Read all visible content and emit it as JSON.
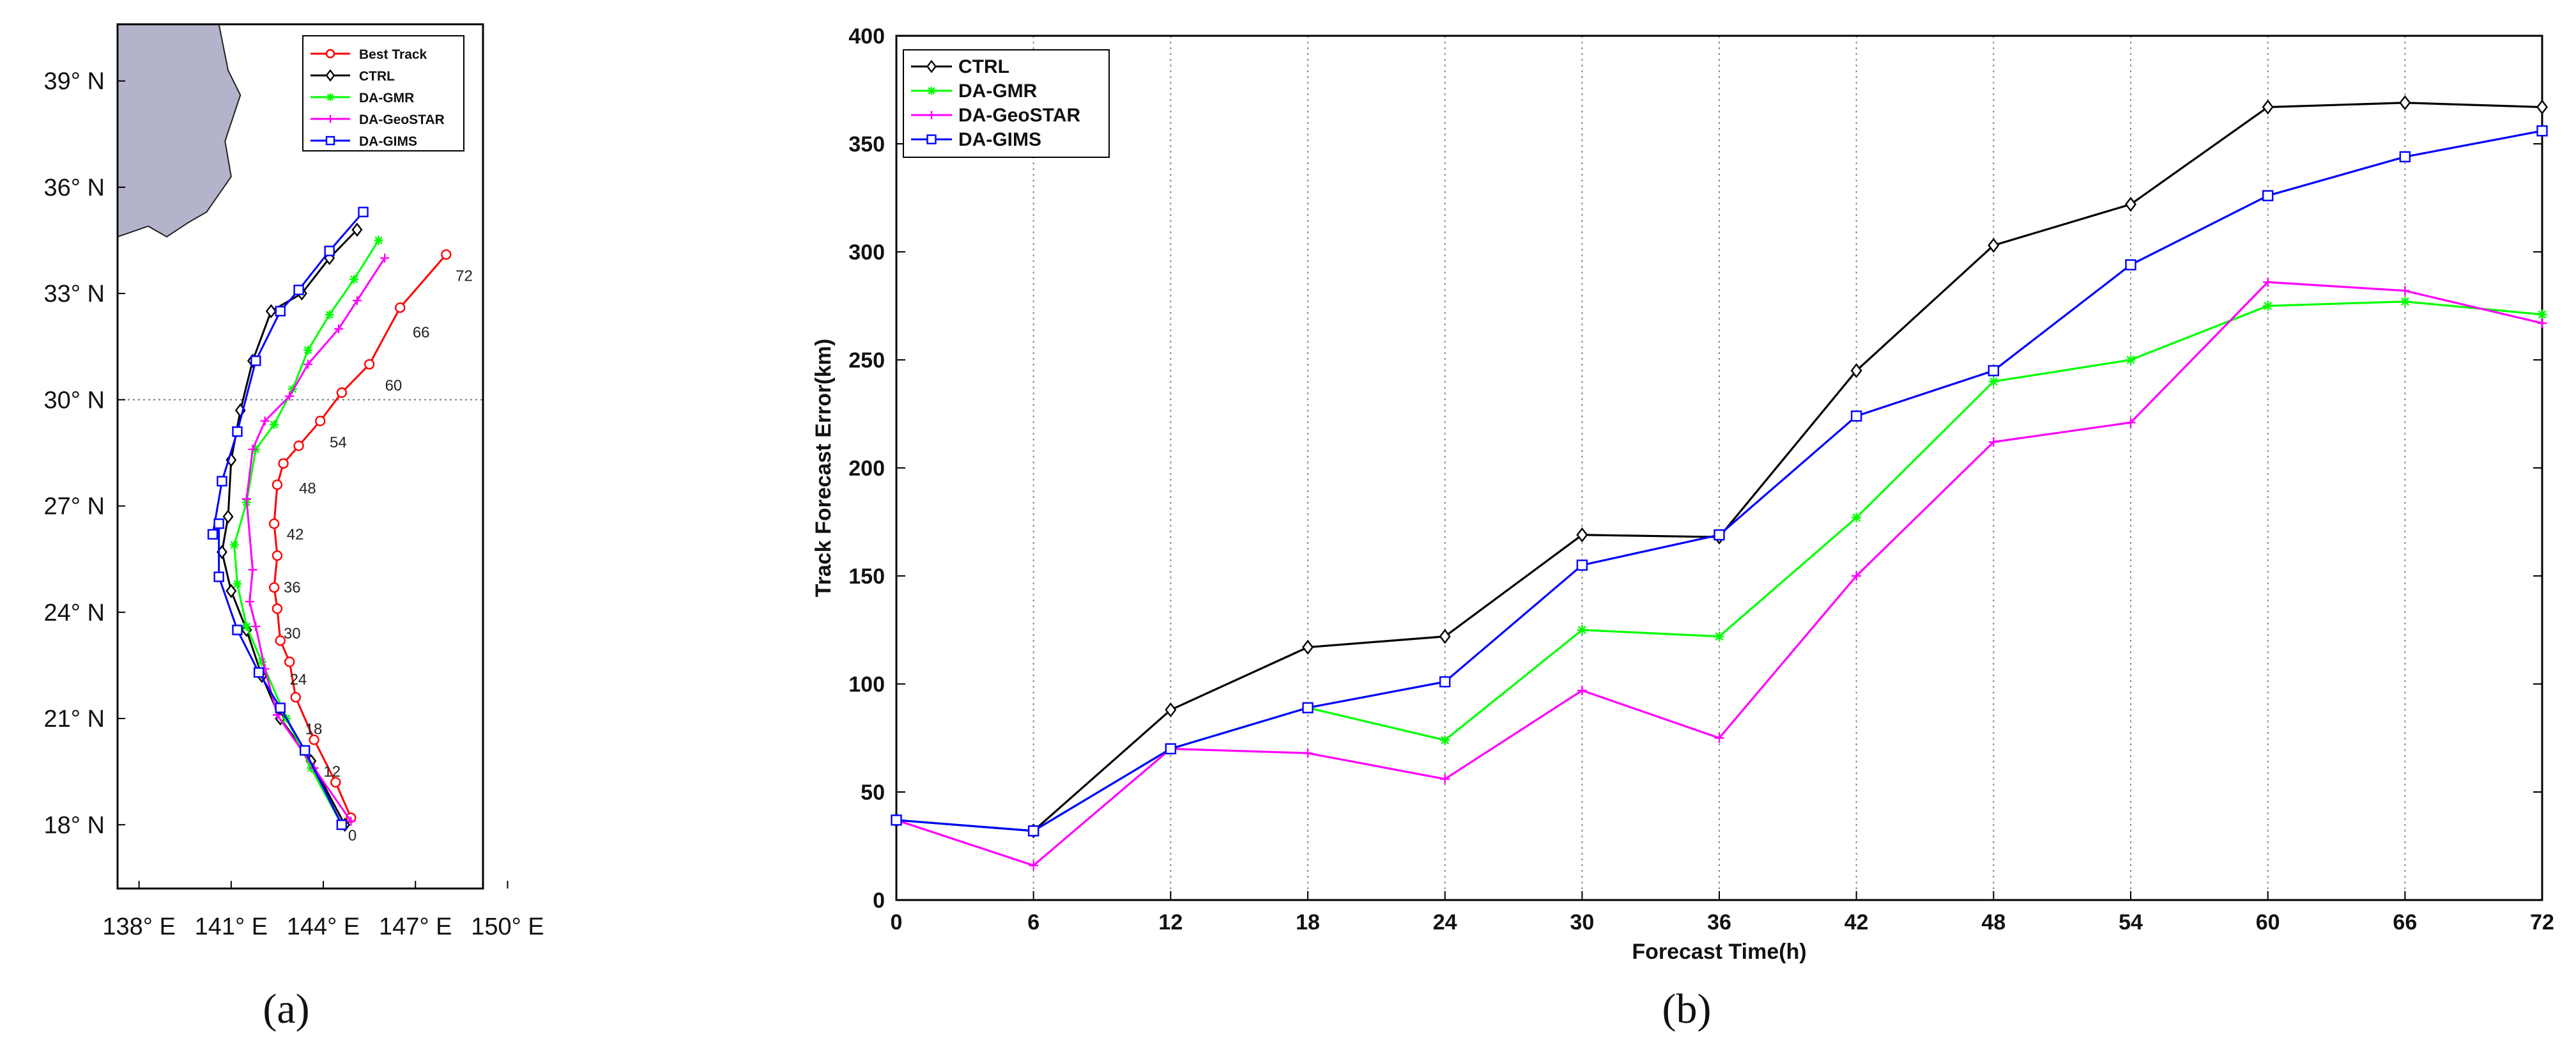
{
  "panel_labels": {
    "a": "(a)",
    "b": "(b)"
  },
  "chart_data": [
    {
      "type": "line",
      "subtype": "track-map",
      "panel": "a",
      "xlabel": "",
      "ylabel": "",
      "x_tick_labels": [
        "138° E",
        "141° E",
        "144° E",
        "147° E",
        "150° E"
      ],
      "y_tick_labels": [
        "18° N",
        "21° N",
        "24° N",
        "27° N",
        "30° N",
        "33° N",
        "36° N",
        "39° N"
      ],
      "x_ticks": [
        138,
        141,
        144,
        147,
        150
      ],
      "y_ticks": [
        18,
        21,
        24,
        27,
        30,
        33,
        36,
        39
      ],
      "xlim": [
        137.3,
        149.2
      ],
      "ylim": [
        16.2,
        40.6
      ],
      "reference_latitude": 30,
      "legend_position": "top-right",
      "land": {
        "name": "Japan coastline",
        "outline": [
          [
            137.3,
            40.6
          ],
          [
            140.6,
            40.6
          ],
          [
            140.9,
            39.3
          ],
          [
            141.3,
            38.6
          ],
          [
            140.8,
            37.3
          ],
          [
            141.0,
            36.3
          ],
          [
            140.2,
            35.3
          ],
          [
            139.6,
            35.0
          ],
          [
            138.9,
            34.6
          ],
          [
            138.3,
            34.9
          ],
          [
            137.3,
            34.6
          ]
        ]
      },
      "series": [
        {
          "name": "Best Track",
          "color": "#ff0000",
          "marker": "circle",
          "lon": [
            144.9,
            144.4,
            143.7,
            143.1,
            142.9,
            142.6,
            142.5,
            142.4,
            142.5,
            142.4,
            142.5,
            142.7,
            143.2,
            143.9,
            144.6,
            145.5,
            146.5,
            148.0
          ],
          "lat": [
            18.2,
            19.2,
            20.4,
            21.6,
            22.6,
            23.2,
            24.1,
            24.7,
            25.6,
            26.5,
            27.6,
            28.2,
            28.7,
            29.4,
            30.2,
            31.0,
            32.6,
            34.1
          ],
          "labels": [
            "0",
            "12",
            "18",
            "24",
            "30",
            "36",
            "42",
            "48",
            "54",
            "60",
            "66",
            "72"
          ],
          "label_points": [
            {
              "lon": 144.6,
              "lat": 17.7,
              "text": "0"
            },
            {
              "lon": 143.8,
              "lat": 19.5,
              "text": "12"
            },
            {
              "lon": 143.2,
              "lat": 20.7,
              "text": "18"
            },
            {
              "lon": 142.7,
              "lat": 22.1,
              "text": "24"
            },
            {
              "lon": 142.5,
              "lat": 23.4,
              "text": "30"
            },
            {
              "lon": 142.5,
              "lat": 24.7,
              "text": "36"
            },
            {
              "lon": 142.6,
              "lat": 26.2,
              "text": "42"
            },
            {
              "lon": 143.0,
              "lat": 27.5,
              "text": "48"
            },
            {
              "lon": 144.0,
              "lat": 28.8,
              "text": "54"
            },
            {
              "lon": 145.8,
              "lat": 30.4,
              "text": "60"
            },
            {
              "lon": 146.7,
              "lat": 31.9,
              "text": "66"
            },
            {
              "lon": 148.1,
              "lat": 33.5,
              "text": "72"
            }
          ]
        },
        {
          "name": "CTRL",
          "color": "#000000",
          "marker": "diamond",
          "lon": [
            144.7,
            143.6,
            142.6,
            142.0,
            141.5,
            141.0,
            140.7,
            140.9,
            141.0,
            141.3,
            141.7,
            142.3,
            143.3,
            144.2,
            145.1
          ],
          "lat": [
            18.0,
            19.8,
            21.0,
            22.2,
            23.5,
            24.6,
            25.7,
            26.7,
            28.3,
            29.7,
            31.1,
            32.5,
            33.0,
            34.0,
            34.8
          ]
        },
        {
          "name": "DA-GMR",
          "color": "#00ff00",
          "marker": "asterisk",
          "lon": [
            144.6,
            143.6,
            142.8,
            142.0,
            141.5,
            141.2,
            141.1,
            141.5,
            141.8,
            142.4,
            143.0,
            143.5,
            144.2,
            145.0,
            145.8
          ],
          "lat": [
            18.0,
            19.6,
            21.0,
            22.6,
            23.6,
            24.8,
            25.9,
            27.1,
            28.6,
            29.3,
            30.3,
            31.4,
            32.4,
            33.4,
            34.5
          ]
        },
        {
          "name": "DA-GeoSTAR",
          "color": "#ff00ff",
          "marker": "plus",
          "lon": [
            144.9,
            143.7,
            142.5,
            142.1,
            141.8,
            141.6,
            141.7,
            141.5,
            141.7,
            142.1,
            142.9,
            143.5,
            144.5,
            145.1,
            146.0
          ],
          "lat": [
            18.1,
            19.6,
            21.1,
            22.4,
            23.6,
            24.3,
            25.2,
            27.2,
            28.6,
            29.4,
            30.1,
            31.0,
            32.0,
            32.8,
            34.0
          ]
        },
        {
          "name": "DA-GIMS",
          "color": "#0000ff",
          "marker": "square",
          "lon": [
            144.6,
            143.4,
            142.6,
            141.9,
            141.2,
            140.6,
            140.6,
            140.4,
            140.7,
            141.2,
            141.8,
            142.6,
            143.2,
            144.2,
            145.3
          ],
          "lat": [
            18.0,
            20.1,
            21.3,
            22.3,
            23.5,
            25.0,
            26.5,
            26.2,
            27.7,
            29.1,
            31.1,
            32.5,
            33.1,
            34.2,
            35.3
          ]
        }
      ]
    },
    {
      "type": "line",
      "panel": "b",
      "title": "",
      "xlabel": "Forecast Time(h)",
      "ylabel": "Track Forecast Error(km)",
      "x": [
        0,
        6,
        12,
        18,
        24,
        30,
        36,
        42,
        48,
        54,
        60,
        66,
        72
      ],
      "x_tick_labels": [
        "0",
        "6",
        "12",
        "18",
        "24",
        "30",
        "36",
        "42",
        "48",
        "54",
        "60",
        "66",
        "72"
      ],
      "y_ticks": [
        0,
        50,
        100,
        150,
        200,
        250,
        300,
        350,
        400
      ],
      "y_tick_labels": [
        "0",
        "50",
        "100",
        "150",
        "200",
        "250",
        "300",
        "350",
        "400"
      ],
      "xlim": [
        0,
        72
      ],
      "ylim": [
        0,
        400
      ],
      "grid": "vertical dotted",
      "legend_position": "top-left",
      "series": [
        {
          "name": "CTRL",
          "color": "#000000",
          "marker": "diamond",
          "values": [
            37,
            32,
            88,
            117,
            122,
            169,
            168,
            245,
            303,
            322,
            367,
            369,
            367
          ]
        },
        {
          "name": "DA-GMR",
          "color": "#00ff00",
          "marker": "asterisk",
          "values": [
            37,
            32,
            70,
            89,
            74,
            125,
            122,
            177,
            240,
            250,
            275,
            277,
            271
          ]
        },
        {
          "name": "DA-GeoSTAR",
          "color": "#ff00ff",
          "marker": "plus",
          "values": [
            37,
            16,
            70,
            68,
            56,
            97,
            75,
            150,
            212,
            221,
            286,
            282,
            267
          ]
        },
        {
          "name": "DA-GIMS",
          "color": "#0000ff",
          "marker": "square",
          "values": [
            37,
            32,
            70,
            89,
            101,
            155,
            169,
            224,
            245,
            294,
            326,
            344,
            356
          ]
        }
      ]
    }
  ]
}
